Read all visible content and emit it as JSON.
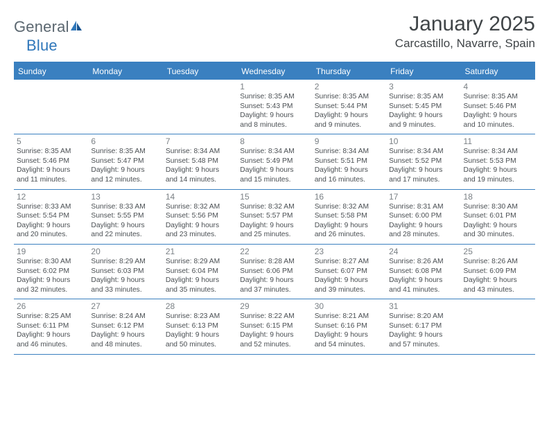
{
  "logo": {
    "part1": "General",
    "part2": "Blue"
  },
  "title": "January 2025",
  "location": "Carcastillo, Navarre, Spain",
  "colors": {
    "header_bg": "#3a80c0",
    "header_text": "#ffffff",
    "logo_gray": "#5b6770",
    "logo_blue": "#2f77ba",
    "daynum": "#7a8085",
    "body_text": "#4a4f53",
    "title_text": "#404548"
  },
  "dow": [
    "Sunday",
    "Monday",
    "Tuesday",
    "Wednesday",
    "Thursday",
    "Friday",
    "Saturday"
  ],
  "weeks": [
    [
      {
        "num": "",
        "sunrise": "",
        "sunset": "",
        "day1": "",
        "day2": ""
      },
      {
        "num": "",
        "sunrise": "",
        "sunset": "",
        "day1": "",
        "day2": ""
      },
      {
        "num": "",
        "sunrise": "",
        "sunset": "",
        "day1": "",
        "day2": ""
      },
      {
        "num": "1",
        "sunrise": "Sunrise: 8:35 AM",
        "sunset": "Sunset: 5:43 PM",
        "day1": "Daylight: 9 hours",
        "day2": "and 8 minutes."
      },
      {
        "num": "2",
        "sunrise": "Sunrise: 8:35 AM",
        "sunset": "Sunset: 5:44 PM",
        "day1": "Daylight: 9 hours",
        "day2": "and 9 minutes."
      },
      {
        "num": "3",
        "sunrise": "Sunrise: 8:35 AM",
        "sunset": "Sunset: 5:45 PM",
        "day1": "Daylight: 9 hours",
        "day2": "and 9 minutes."
      },
      {
        "num": "4",
        "sunrise": "Sunrise: 8:35 AM",
        "sunset": "Sunset: 5:46 PM",
        "day1": "Daylight: 9 hours",
        "day2": "and 10 minutes."
      }
    ],
    [
      {
        "num": "5",
        "sunrise": "Sunrise: 8:35 AM",
        "sunset": "Sunset: 5:46 PM",
        "day1": "Daylight: 9 hours",
        "day2": "and 11 minutes."
      },
      {
        "num": "6",
        "sunrise": "Sunrise: 8:35 AM",
        "sunset": "Sunset: 5:47 PM",
        "day1": "Daylight: 9 hours",
        "day2": "and 12 minutes."
      },
      {
        "num": "7",
        "sunrise": "Sunrise: 8:34 AM",
        "sunset": "Sunset: 5:48 PM",
        "day1": "Daylight: 9 hours",
        "day2": "and 14 minutes."
      },
      {
        "num": "8",
        "sunrise": "Sunrise: 8:34 AM",
        "sunset": "Sunset: 5:49 PM",
        "day1": "Daylight: 9 hours",
        "day2": "and 15 minutes."
      },
      {
        "num": "9",
        "sunrise": "Sunrise: 8:34 AM",
        "sunset": "Sunset: 5:51 PM",
        "day1": "Daylight: 9 hours",
        "day2": "and 16 minutes."
      },
      {
        "num": "10",
        "sunrise": "Sunrise: 8:34 AM",
        "sunset": "Sunset: 5:52 PM",
        "day1": "Daylight: 9 hours",
        "day2": "and 17 minutes."
      },
      {
        "num": "11",
        "sunrise": "Sunrise: 8:34 AM",
        "sunset": "Sunset: 5:53 PM",
        "day1": "Daylight: 9 hours",
        "day2": "and 19 minutes."
      }
    ],
    [
      {
        "num": "12",
        "sunrise": "Sunrise: 8:33 AM",
        "sunset": "Sunset: 5:54 PM",
        "day1": "Daylight: 9 hours",
        "day2": "and 20 minutes."
      },
      {
        "num": "13",
        "sunrise": "Sunrise: 8:33 AM",
        "sunset": "Sunset: 5:55 PM",
        "day1": "Daylight: 9 hours",
        "day2": "and 22 minutes."
      },
      {
        "num": "14",
        "sunrise": "Sunrise: 8:32 AM",
        "sunset": "Sunset: 5:56 PM",
        "day1": "Daylight: 9 hours",
        "day2": "and 23 minutes."
      },
      {
        "num": "15",
        "sunrise": "Sunrise: 8:32 AM",
        "sunset": "Sunset: 5:57 PM",
        "day1": "Daylight: 9 hours",
        "day2": "and 25 minutes."
      },
      {
        "num": "16",
        "sunrise": "Sunrise: 8:32 AM",
        "sunset": "Sunset: 5:58 PM",
        "day1": "Daylight: 9 hours",
        "day2": "and 26 minutes."
      },
      {
        "num": "17",
        "sunrise": "Sunrise: 8:31 AM",
        "sunset": "Sunset: 6:00 PM",
        "day1": "Daylight: 9 hours",
        "day2": "and 28 minutes."
      },
      {
        "num": "18",
        "sunrise": "Sunrise: 8:30 AM",
        "sunset": "Sunset: 6:01 PM",
        "day1": "Daylight: 9 hours",
        "day2": "and 30 minutes."
      }
    ],
    [
      {
        "num": "19",
        "sunrise": "Sunrise: 8:30 AM",
        "sunset": "Sunset: 6:02 PM",
        "day1": "Daylight: 9 hours",
        "day2": "and 32 minutes."
      },
      {
        "num": "20",
        "sunrise": "Sunrise: 8:29 AM",
        "sunset": "Sunset: 6:03 PM",
        "day1": "Daylight: 9 hours",
        "day2": "and 33 minutes."
      },
      {
        "num": "21",
        "sunrise": "Sunrise: 8:29 AM",
        "sunset": "Sunset: 6:04 PM",
        "day1": "Daylight: 9 hours",
        "day2": "and 35 minutes."
      },
      {
        "num": "22",
        "sunrise": "Sunrise: 8:28 AM",
        "sunset": "Sunset: 6:06 PM",
        "day1": "Daylight: 9 hours",
        "day2": "and 37 minutes."
      },
      {
        "num": "23",
        "sunrise": "Sunrise: 8:27 AM",
        "sunset": "Sunset: 6:07 PM",
        "day1": "Daylight: 9 hours",
        "day2": "and 39 minutes."
      },
      {
        "num": "24",
        "sunrise": "Sunrise: 8:26 AM",
        "sunset": "Sunset: 6:08 PM",
        "day1": "Daylight: 9 hours",
        "day2": "and 41 minutes."
      },
      {
        "num": "25",
        "sunrise": "Sunrise: 8:26 AM",
        "sunset": "Sunset: 6:09 PM",
        "day1": "Daylight: 9 hours",
        "day2": "and 43 minutes."
      }
    ],
    [
      {
        "num": "26",
        "sunrise": "Sunrise: 8:25 AM",
        "sunset": "Sunset: 6:11 PM",
        "day1": "Daylight: 9 hours",
        "day2": "and 46 minutes."
      },
      {
        "num": "27",
        "sunrise": "Sunrise: 8:24 AM",
        "sunset": "Sunset: 6:12 PM",
        "day1": "Daylight: 9 hours",
        "day2": "and 48 minutes."
      },
      {
        "num": "28",
        "sunrise": "Sunrise: 8:23 AM",
        "sunset": "Sunset: 6:13 PM",
        "day1": "Daylight: 9 hours",
        "day2": "and 50 minutes."
      },
      {
        "num": "29",
        "sunrise": "Sunrise: 8:22 AM",
        "sunset": "Sunset: 6:15 PM",
        "day1": "Daylight: 9 hours",
        "day2": "and 52 minutes."
      },
      {
        "num": "30",
        "sunrise": "Sunrise: 8:21 AM",
        "sunset": "Sunset: 6:16 PM",
        "day1": "Daylight: 9 hours",
        "day2": "and 54 minutes."
      },
      {
        "num": "31",
        "sunrise": "Sunrise: 8:20 AM",
        "sunset": "Sunset: 6:17 PM",
        "day1": "Daylight: 9 hours",
        "day2": "and 57 minutes."
      },
      {
        "num": "",
        "sunrise": "",
        "sunset": "",
        "day1": "",
        "day2": ""
      }
    ]
  ]
}
